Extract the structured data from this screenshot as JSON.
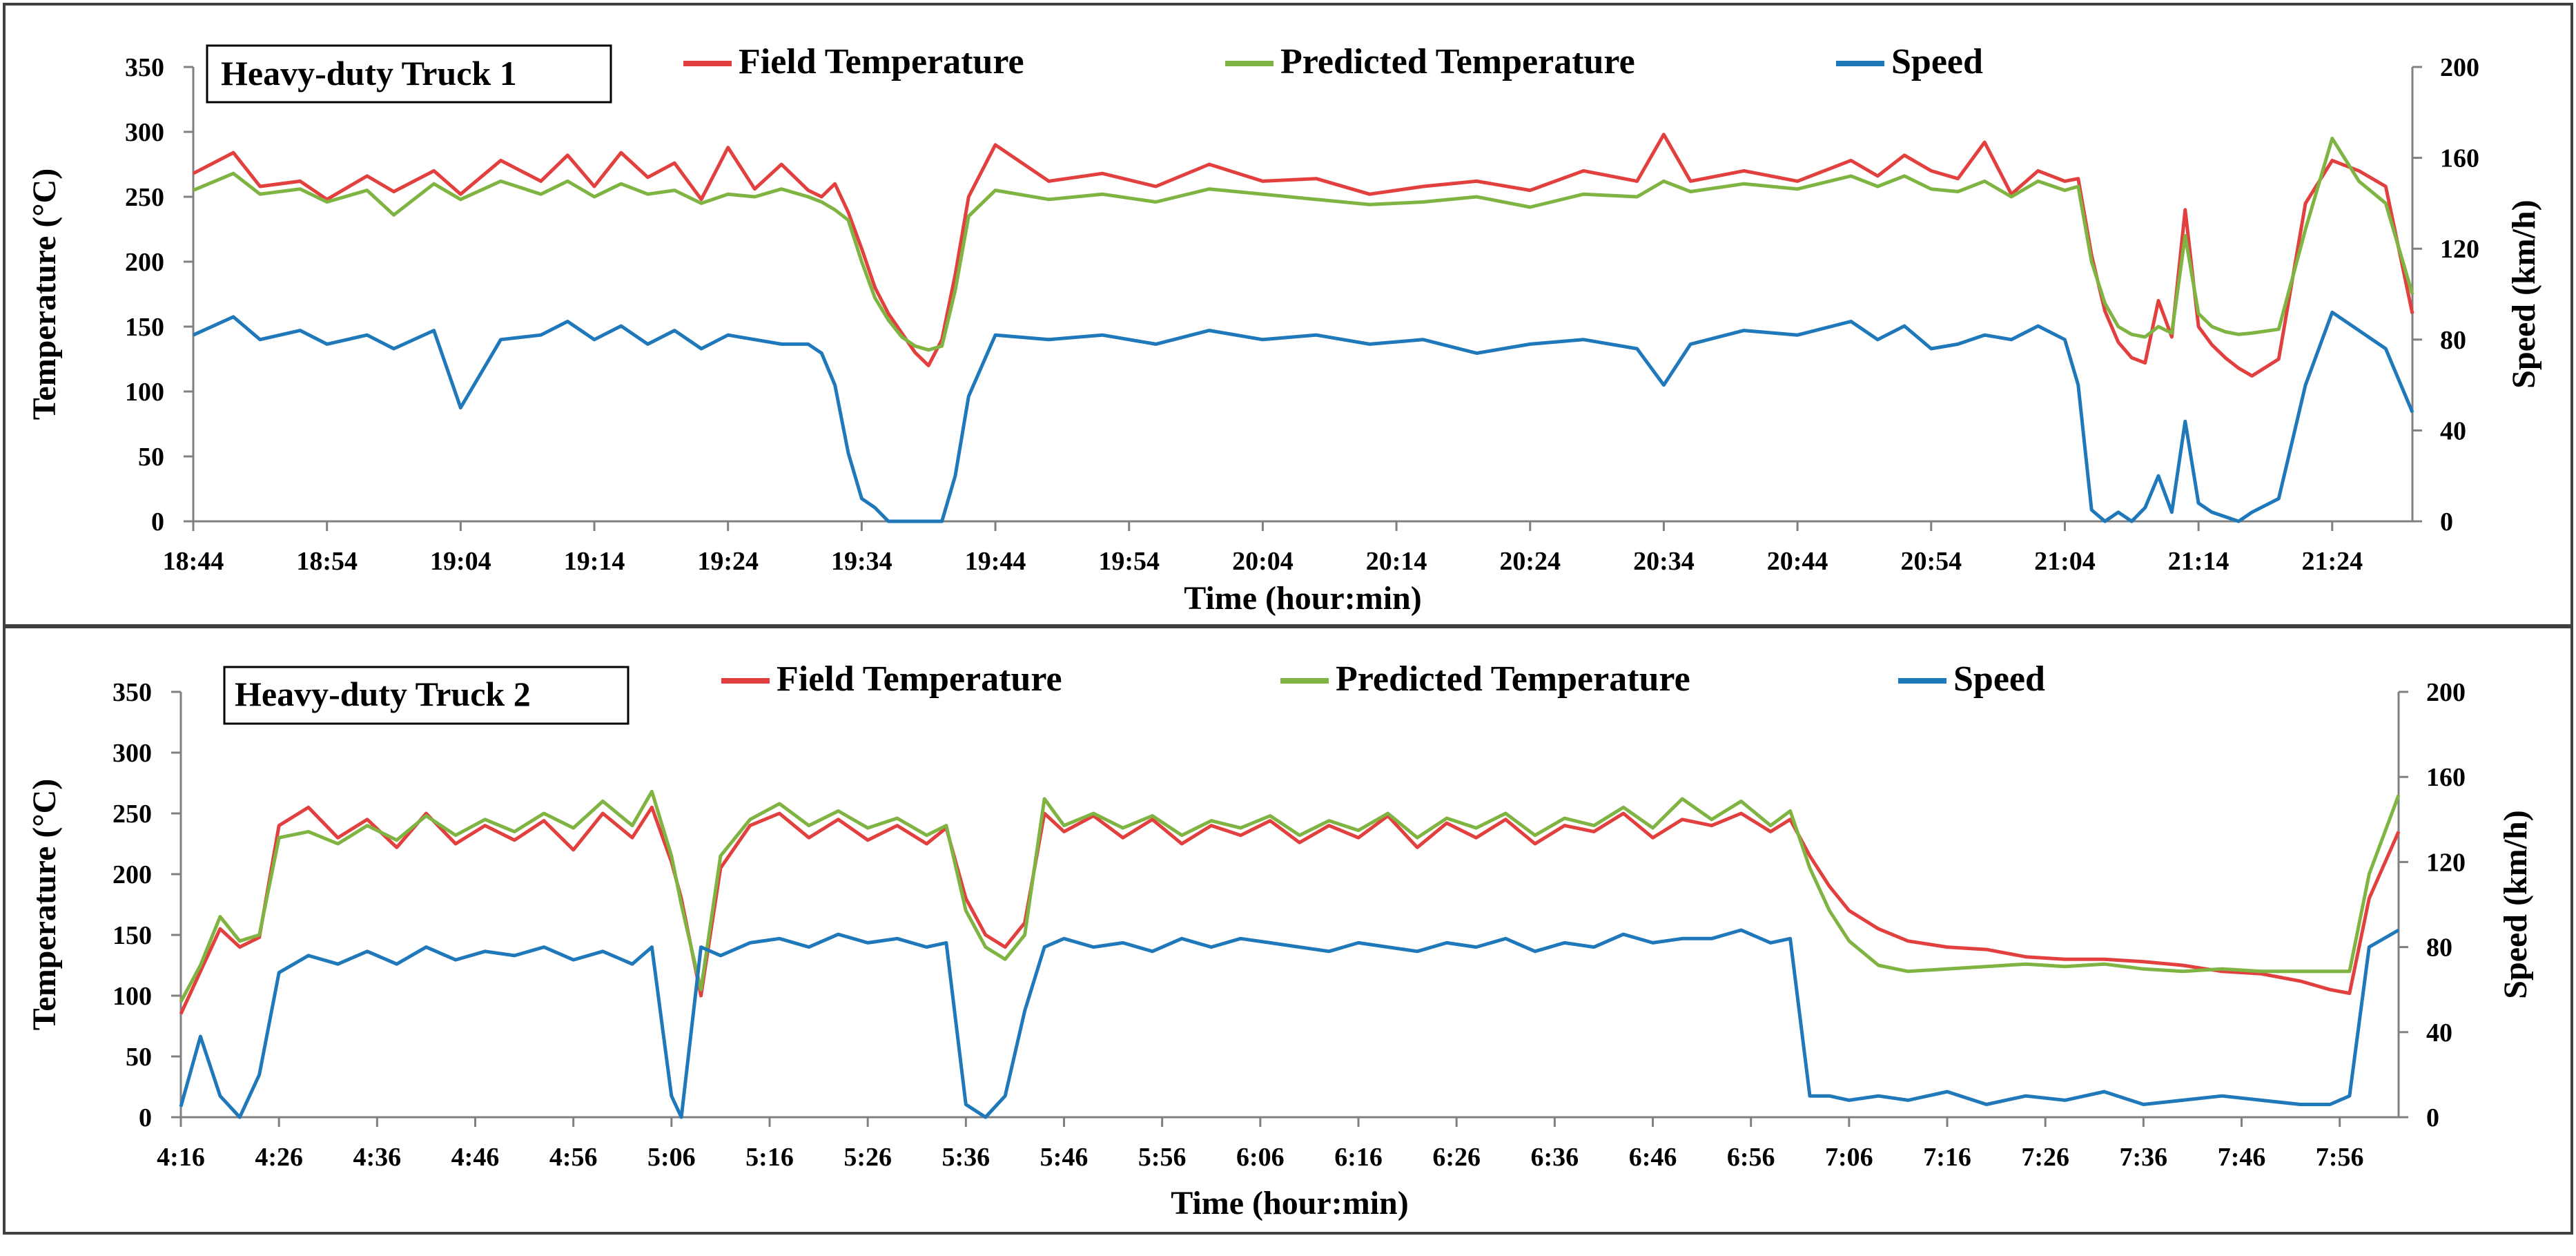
{
  "colors": {
    "field": "#E2403E",
    "predicted": "#7FB443",
    "speed": "#1F78B9",
    "axis": "#808080",
    "panel_border": "#404040"
  },
  "chart_data": [
    {
      "type": "line",
      "title": "Heavy-duty Truck 1",
      "xlabel": "Time (hour:min)",
      "ylabel": "Temperature (°C)",
      "y2label": "Speed (km/h)",
      "ylim": [
        0,
        350
      ],
      "y2lim": [
        0,
        200
      ],
      "yticks": [
        "0",
        "50",
        "100",
        "150",
        "200",
        "250",
        "300",
        "350"
      ],
      "y2ticks": [
        "0",
        "40",
        "80",
        "120",
        "160",
        "200"
      ],
      "xlim": [
        0,
        166
      ],
      "xticks": [
        "18:44",
        "18:54",
        "19:04",
        "19:14",
        "19:24",
        "19:34",
        "19:44",
        "19:54",
        "20:04",
        "20:14",
        "20:24",
        "20:34",
        "20:44",
        "20:54",
        "21:04",
        "21:14",
        "21:24"
      ],
      "legend": [
        "Field Temperature",
        "Predicted Temperature",
        "Speed"
      ],
      "series": [
        {
          "name": "Field Temperature",
          "axis": "left",
          "x": [
            0,
            3,
            5,
            8,
            10,
            13,
            15,
            18,
            20,
            23,
            26,
            28,
            30,
            32,
            34,
            36,
            38,
            40,
            42,
            44,
            46,
            47,
            48,
            49,
            50,
            51,
            52,
            53,
            54,
            55,
            56,
            57,
            58,
            60,
            64,
            68,
            72,
            76,
            80,
            84,
            88,
            92,
            96,
            100,
            104,
            108,
            110,
            112,
            116,
            120,
            124,
            126,
            128,
            130,
            132,
            134,
            136,
            138,
            140,
            141,
            142,
            143,
            144,
            145,
            146,
            147,
            148,
            149,
            150,
            151,
            152,
            153,
            154,
            156,
            158,
            160,
            162,
            164,
            166
          ],
          "y": [
            268,
            284,
            258,
            262,
            248,
            266,
            254,
            270,
            252,
            278,
            262,
            282,
            258,
            284,
            265,
            276,
            248,
            288,
            256,
            275,
            255,
            250,
            260,
            238,
            210,
            180,
            160,
            145,
            130,
            120,
            140,
            190,
            250,
            290,
            262,
            268,
            258,
            275,
            262,
            264,
            252,
            258,
            262,
            255,
            270,
            262,
            298,
            262,
            270,
            262,
            278,
            266,
            282,
            270,
            264,
            292,
            252,
            270,
            262,
            264,
            205,
            162,
            138,
            126,
            122,
            170,
            142,
            240,
            150,
            136,
            126,
            118,
            112,
            125,
            245,
            278,
            270,
            258,
            160
          ]
        },
        {
          "name": "Predicted Temperature",
          "axis": "left",
          "x": [
            0,
            3,
            5,
            8,
            10,
            13,
            15,
            18,
            20,
            23,
            26,
            28,
            30,
            32,
            34,
            36,
            38,
            40,
            42,
            44,
            46,
            47,
            48,
            49,
            50,
            51,
            52,
            53,
            54,
            55,
            56,
            57,
            58,
            60,
            64,
            68,
            72,
            76,
            80,
            84,
            88,
            92,
            96,
            100,
            104,
            108,
            110,
            112,
            116,
            120,
            124,
            126,
            128,
            130,
            132,
            134,
            136,
            138,
            140,
            141,
            142,
            143,
            144,
            145,
            146,
            147,
            148,
            149,
            150,
            151,
            152,
            153,
            154,
            156,
            158,
            160,
            162,
            164,
            166
          ],
          "y": [
            255,
            268,
            252,
            256,
            246,
            255,
            236,
            260,
            248,
            262,
            252,
            262,
            250,
            260,
            252,
            255,
            245,
            252,
            250,
            256,
            250,
            246,
            240,
            232,
            200,
            172,
            155,
            142,
            135,
            132,
            135,
            178,
            235,
            255,
            248,
            252,
            246,
            256,
            252,
            248,
            244,
            246,
            250,
            242,
            252,
            250,
            262,
            254,
            260,
            256,
            266,
            258,
            266,
            256,
            254,
            262,
            250,
            262,
            255,
            258,
            200,
            168,
            150,
            144,
            142,
            150,
            145,
            220,
            160,
            150,
            146,
            144,
            145,
            148,
            225,
            295,
            262,
            245,
            175
          ]
        },
        {
          "name": "Speed",
          "axis": "right",
          "x": [
            0,
            3,
            5,
            8,
            10,
            13,
            15,
            18,
            20,
            23,
            26,
            28,
            30,
            32,
            34,
            36,
            38,
            40,
            42,
            44,
            46,
            47,
            48,
            49,
            50,
            51,
            52,
            53,
            54,
            55,
            56,
            57,
            58,
            60,
            64,
            68,
            72,
            76,
            80,
            84,
            88,
            92,
            96,
            100,
            104,
            108,
            110,
            112,
            116,
            120,
            124,
            126,
            128,
            130,
            132,
            134,
            136,
            138,
            140,
            141,
            142,
            143,
            144,
            145,
            146,
            147,
            148,
            149,
            150,
            151,
            152,
            153,
            154,
            156,
            158,
            160,
            162,
            164,
            166
          ],
          "y": [
            82,
            90,
            80,
            84,
            78,
            82,
            76,
            84,
            50,
            80,
            82,
            88,
            80,
            86,
            78,
            84,
            76,
            82,
            80,
            78,
            78,
            74,
            60,
            30,
            10,
            6,
            0,
            0,
            0,
            0,
            0,
            20,
            55,
            82,
            80,
            82,
            78,
            84,
            80,
            82,
            78,
            80,
            74,
            78,
            80,
            76,
            60,
            78,
            84,
            82,
            88,
            80,
            86,
            76,
            78,
            82,
            80,
            86,
            80,
            60,
            5,
            0,
            4,
            0,
            6,
            20,
            4,
            44,
            8,
            4,
            2,
            0,
            4,
            10,
            60,
            92,
            84,
            76,
            48
          ]
        }
      ]
    },
    {
      "type": "line",
      "title": "Heavy-duty Truck 2",
      "xlabel": "Time (hour:min)",
      "ylabel": "Temperature (°C)",
      "y2label": "Speed (km/h)",
      "ylim": [
        0,
        350
      ],
      "y2lim": [
        0,
        200
      ],
      "yticks": [
        "0",
        "50",
        "100",
        "150",
        "200",
        "250",
        "300",
        "350"
      ],
      "y2ticks": [
        "0",
        "40",
        "80",
        "120",
        "160",
        "200"
      ],
      "xlim": [
        0,
        226
      ],
      "xticks": [
        "4:16",
        "4:26",
        "4:36",
        "4:46",
        "4:56",
        "5:06",
        "5:16",
        "5:26",
        "5:36",
        "5:46",
        "5:56",
        "6:06",
        "6:16",
        "6:26",
        "6:36",
        "6:46",
        "6:56",
        "7:06",
        "7:16",
        "7:26",
        "7:36",
        "7:46",
        "7:56"
      ],
      "legend": [
        "Field Temperature",
        "Predicted Temperature",
        "Speed"
      ],
      "series": [
        {
          "name": "Field Temperature",
          "axis": "left",
          "x": [
            0,
            2,
            4,
            6,
            8,
            10,
            13,
            16,
            19,
            22,
            25,
            28,
            31,
            34,
            37,
            40,
            43,
            46,
            48,
            50,
            51,
            53,
            55,
            58,
            61,
            64,
            67,
            70,
            73,
            76,
            78,
            80,
            82,
            84,
            86,
            88,
            90,
            93,
            96,
            99,
            102,
            105,
            108,
            111,
            114,
            117,
            120,
            123,
            126,
            129,
            132,
            135,
            138,
            141,
            144,
            147,
            150,
            153,
            156,
            159,
            162,
            164,
            166,
            168,
            170,
            173,
            176,
            180,
            184,
            188,
            192,
            196,
            200,
            204,
            208,
            212,
            216,
            219,
            221,
            223,
            226
          ],
          "y": [
            85,
            120,
            155,
            140,
            148,
            240,
            255,
            230,
            245,
            222,
            250,
            225,
            240,
            228,
            244,
            220,
            250,
            230,
            255,
            210,
            180,
            100,
            205,
            240,
            250,
            230,
            245,
            228,
            240,
            225,
            238,
            180,
            150,
            140,
            160,
            250,
            235,
            248,
            230,
            245,
            225,
            240,
            232,
            244,
            226,
            240,
            230,
            248,
            222,
            242,
            230,
            245,
            225,
            240,
            235,
            250,
            230,
            245,
            240,
            250,
            235,
            245,
            215,
            190,
            170,
            155,
            145,
            140,
            138,
            132,
            130,
            130,
            128,
            125,
            120,
            118,
            112,
            105,
            102,
            180,
            235
          ]
        },
        {
          "name": "Predicted Temperature",
          "axis": "left",
          "x": [
            0,
            2,
            4,
            6,
            8,
            10,
            13,
            16,
            19,
            22,
            25,
            28,
            31,
            34,
            37,
            40,
            43,
            46,
            48,
            50,
            51,
            53,
            55,
            58,
            61,
            64,
            67,
            70,
            73,
            76,
            78,
            80,
            82,
            84,
            86,
            88,
            90,
            93,
            96,
            99,
            102,
            105,
            108,
            111,
            114,
            117,
            120,
            123,
            126,
            129,
            132,
            135,
            138,
            141,
            144,
            147,
            150,
            153,
            156,
            159,
            162,
            164,
            166,
            168,
            170,
            173,
            176,
            180,
            184,
            188,
            192,
            196,
            200,
            204,
            208,
            212,
            216,
            219,
            221,
            223,
            226
          ],
          "y": [
            95,
            125,
            165,
            145,
            150,
            230,
            235,
            225,
            240,
            228,
            248,
            232,
            245,
            235,
            250,
            238,
            260,
            240,
            268,
            215,
            175,
            105,
            215,
            245,
            258,
            240,
            252,
            238,
            246,
            232,
            240,
            170,
            140,
            130,
            150,
            262,
            240,
            250,
            238,
            248,
            232,
            244,
            238,
            248,
            232,
            244,
            236,
            250,
            230,
            246,
            238,
            250,
            232,
            246,
            240,
            255,
            238,
            262,
            245,
            260,
            240,
            252,
            205,
            170,
            145,
            125,
            120,
            122,
            124,
            126,
            124,
            126,
            122,
            120,
            122,
            120,
            120,
            120,
            120,
            200,
            265
          ]
        },
        {
          "name": "Speed",
          "axis": "right",
          "x": [
            0,
            2,
            4,
            6,
            8,
            10,
            13,
            16,
            19,
            22,
            25,
            28,
            31,
            34,
            37,
            40,
            43,
            46,
            48,
            50,
            51,
            53,
            55,
            58,
            61,
            64,
            67,
            70,
            73,
            76,
            78,
            80,
            82,
            84,
            86,
            88,
            90,
            93,
            96,
            99,
            102,
            105,
            108,
            111,
            114,
            117,
            120,
            123,
            126,
            129,
            132,
            135,
            138,
            141,
            144,
            147,
            150,
            153,
            156,
            159,
            162,
            164,
            166,
            168,
            170,
            173,
            176,
            180,
            184,
            188,
            192,
            196,
            200,
            204,
            208,
            212,
            216,
            219,
            221,
            223,
            226
          ],
          "y": [
            5,
            38,
            10,
            0,
            20,
            68,
            76,
            72,
            78,
            72,
            80,
            74,
            78,
            76,
            80,
            74,
            78,
            72,
            80,
            10,
            0,
            80,
            76,
            82,
            84,
            80,
            86,
            82,
            84,
            80,
            82,
            6,
            0,
            10,
            50,
            80,
            84,
            80,
            82,
            78,
            84,
            80,
            84,
            82,
            80,
            78,
            82,
            80,
            78,
            82,
            80,
            84,
            78,
            82,
            80,
            86,
            82,
            84,
            84,
            88,
            82,
            84,
            10,
            10,
            8,
            10,
            8,
            12,
            6,
            10,
            8,
            12,
            6,
            8,
            10,
            8,
            6,
            6,
            10,
            80,
            88
          ]
        }
      ]
    }
  ]
}
